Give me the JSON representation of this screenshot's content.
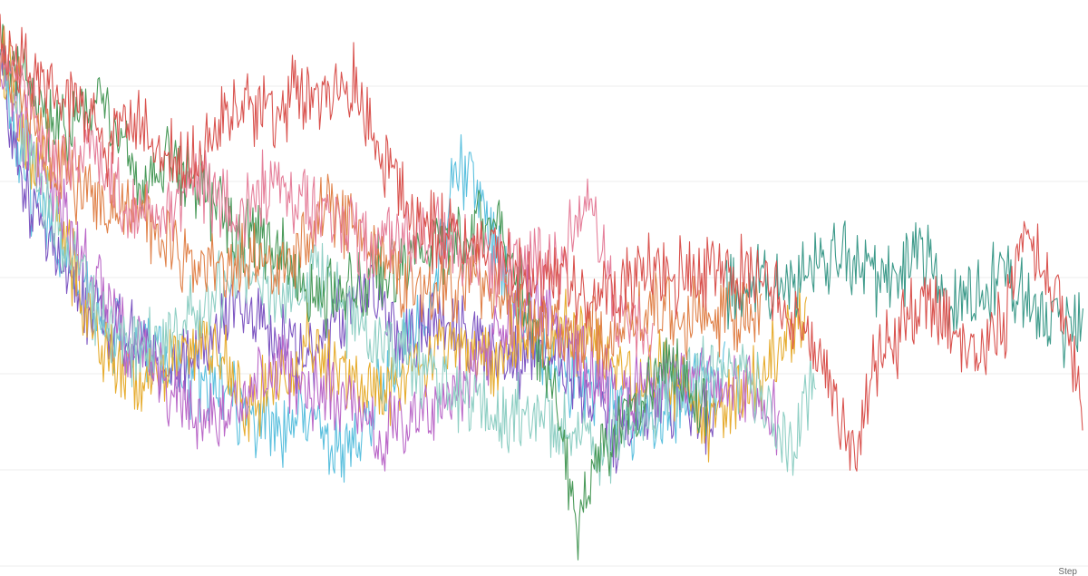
{
  "chart_data": {
    "type": "line",
    "xlabel": "Step",
    "ylabel": "",
    "title": "",
    "grid": true,
    "ylim": [
      0,
      6
    ],
    "x_range": [
      0,
      1200
    ],
    "series": [
      {
        "color": "#5bc0de",
        "points": [
          [
            0,
            48
          ],
          [
            15,
            148
          ],
          [
            40,
            230
          ],
          [
            80,
            300
          ],
          [
            120,
            360
          ],
          [
            170,
            390
          ],
          [
            220,
            420
          ],
          [
            280,
            460
          ],
          [
            340,
            470
          ],
          [
            380,
            500
          ],
          [
            420,
            430
          ],
          [
            480,
            330
          ],
          [
            500,
            170
          ],
          [
            520,
            200
          ],
          [
            560,
            310
          ],
          [
            600,
            400
          ],
          [
            640,
            420
          ],
          [
            680,
            450
          ],
          [
            720,
            470
          ],
          [
            760,
            430
          ],
          [
            800,
            420
          ]
        ]
      },
      {
        "color": "#7e57c2",
        "points": [
          [
            0,
            58
          ],
          [
            20,
            180
          ],
          [
            40,
            240
          ],
          [
            70,
            290
          ],
          [
            100,
            340
          ],
          [
            140,
            370
          ],
          [
            180,
            400
          ],
          [
            220,
            390
          ],
          [
            260,
            330
          ],
          [
            300,
            360
          ],
          [
            340,
            400
          ],
          [
            380,
            340
          ],
          [
            410,
            320
          ],
          [
            440,
            370
          ],
          [
            480,
            360
          ],
          [
            520,
            380
          ],
          [
            560,
            400
          ],
          [
            600,
            380
          ],
          [
            640,
            420
          ],
          [
            680,
            480
          ],
          [
            720,
            440
          ],
          [
            760,
            450
          ],
          [
            790,
            460
          ]
        ]
      },
      {
        "color": "#e6ac2f",
        "points": [
          [
            0,
            55
          ],
          [
            30,
            150
          ],
          [
            60,
            220
          ],
          [
            90,
            330
          ],
          [
            120,
            400
          ],
          [
            160,
            420
          ],
          [
            200,
            390
          ],
          [
            240,
            380
          ],
          [
            270,
            450
          ],
          [
            300,
            430
          ],
          [
            340,
            380
          ],
          [
            380,
            420
          ],
          [
            420,
            440
          ],
          [
            460,
            400
          ],
          [
            500,
            380
          ],
          [
            540,
            400
          ],
          [
            580,
            360
          ],
          [
            620,
            360
          ],
          [
            660,
            390
          ],
          [
            700,
            420
          ],
          [
            740,
            410
          ],
          [
            780,
            470
          ],
          [
            820,
            430
          ],
          [
            860,
            380
          ],
          [
            890,
            340
          ]
        ]
      },
      {
        "color": "#ba68c8",
        "points": [
          [
            0,
            60
          ],
          [
            25,
            140
          ],
          [
            60,
            210
          ],
          [
            100,
            300
          ],
          [
            140,
            370
          ],
          [
            180,
            420
          ],
          [
            220,
            460
          ],
          [
            260,
            450
          ],
          [
            300,
            400
          ],
          [
            340,
            430
          ],
          [
            380,
            440
          ],
          [
            420,
            480
          ],
          [
            460,
            460
          ],
          [
            500,
            430
          ],
          [
            540,
            380
          ],
          [
            580,
            330
          ],
          [
            620,
            360
          ],
          [
            660,
            420
          ],
          [
            700,
            430
          ],
          [
            740,
            410
          ],
          [
            780,
            420
          ],
          [
            820,
            430
          ],
          [
            860,
            460
          ]
        ]
      },
      {
        "color": "#8fcfc4",
        "points": [
          [
            0,
            56
          ],
          [
            30,
            160
          ],
          [
            70,
            260
          ],
          [
            110,
            350
          ],
          [
            150,
            390
          ],
          [
            190,
            370
          ],
          [
            230,
            330
          ],
          [
            270,
            300
          ],
          [
            310,
            340
          ],
          [
            350,
            300
          ],
          [
            390,
            360
          ],
          [
            430,
            380
          ],
          [
            470,
            420
          ],
          [
            510,
            440
          ],
          [
            550,
            460
          ],
          [
            590,
            450
          ],
          [
            630,
            480
          ],
          [
            670,
            490
          ],
          [
            710,
            460
          ],
          [
            750,
            420
          ],
          [
            790,
            400
          ],
          [
            830,
            420
          ],
          [
            870,
            500
          ],
          [
            900,
            420
          ]
        ]
      },
      {
        "color": "#4a9a5a",
        "points": [
          [
            0,
            40
          ],
          [
            30,
            100
          ],
          [
            70,
            150
          ],
          [
            110,
            110
          ],
          [
            150,
            200
          ],
          [
            190,
            180
          ],
          [
            230,
            220
          ],
          [
            270,
            260
          ],
          [
            310,
            280
          ],
          [
            350,
            330
          ],
          [
            390,
            320
          ],
          [
            430,
            300
          ],
          [
            470,
            280
          ],
          [
            510,
            260
          ],
          [
            550,
            240
          ],
          [
            590,
            370
          ],
          [
            620,
            460
          ],
          [
            635,
            590
          ],
          [
            660,
            500
          ],
          [
            700,
            440
          ],
          [
            740,
            400
          ],
          [
            780,
            440
          ]
        ]
      },
      {
        "color": "#e0824a",
        "points": [
          [
            0,
            50
          ],
          [
            40,
            140
          ],
          [
            80,
            200
          ],
          [
            120,
            220
          ],
          [
            160,
            240
          ],
          [
            200,
            280
          ],
          [
            240,
            300
          ],
          [
            280,
            280
          ],
          [
            320,
            300
          ],
          [
            360,
            220
          ],
          [
            400,
            260
          ],
          [
            440,
            300
          ],
          [
            480,
            330
          ],
          [
            520,
            310
          ],
          [
            560,
            330
          ],
          [
            600,
            360
          ],
          [
            640,
            380
          ],
          [
            680,
            360
          ],
          [
            720,
            340
          ],
          [
            760,
            350
          ],
          [
            800,
            350
          ],
          [
            840,
            330
          ]
        ]
      },
      {
        "color": "#e57f9a",
        "points": [
          [
            0,
            45
          ],
          [
            30,
            110
          ],
          [
            60,
            180
          ],
          [
            100,
            160
          ],
          [
            140,
            230
          ],
          [
            180,
            240
          ],
          [
            220,
            200
          ],
          [
            260,
            240
          ],
          [
            300,
            200
          ],
          [
            340,
            230
          ],
          [
            380,
            250
          ],
          [
            420,
            280
          ],
          [
            460,
            250
          ],
          [
            500,
            270
          ],
          [
            540,
            300
          ],
          [
            580,
            280
          ],
          [
            620,
            290
          ],
          [
            650,
            200
          ],
          [
            680,
            350
          ],
          [
            720,
            380
          ]
        ]
      },
      {
        "color": "#3d9a8a",
        "points": [
          [
            800,
            330
          ],
          [
            840,
            310
          ],
          [
            870,
            320
          ],
          [
            900,
            300
          ],
          [
            930,
            280
          ],
          [
            960,
            310
          ],
          [
            990,
            300
          ],
          [
            1020,
            280
          ],
          [
            1050,
            340
          ],
          [
            1080,
            330
          ],
          [
            1110,
            300
          ],
          [
            1140,
            340
          ],
          [
            1170,
            360
          ],
          [
            1195,
            350
          ]
        ]
      },
      {
        "color": "#d9534f",
        "points": [
          [
            0,
            50
          ],
          [
            30,
            80
          ],
          [
            60,
            100
          ],
          [
            90,
            130
          ],
          [
            120,
            160
          ],
          [
            150,
            140
          ],
          [
            180,
            170
          ],
          [
            210,
            190
          ],
          [
            240,
            150
          ],
          [
            270,
            110
          ],
          [
            300,
            130
          ],
          [
            330,
            100
          ],
          [
            360,
            110
          ],
          [
            390,
            90
          ],
          [
            410,
            140
          ],
          [
            430,
            200
          ],
          [
            450,
            230
          ],
          [
            470,
            260
          ],
          [
            500,
            250
          ],
          [
            530,
            270
          ],
          [
            560,
            290
          ],
          [
            590,
            300
          ],
          [
            620,
            310
          ],
          [
            650,
            330
          ],
          [
            680,
            320
          ],
          [
            710,
            300
          ],
          [
            740,
            310
          ],
          [
            770,
            300
          ],
          [
            800,
            310
          ],
          [
            830,
            300
          ],
          [
            860,
            330
          ],
          [
            890,
            370
          ],
          [
            920,
            440
          ],
          [
            945,
            520
          ],
          [
            960,
            400
          ],
          [
            990,
            370
          ],
          [
            1020,
            330
          ],
          [
            1050,
            360
          ],
          [
            1080,
            390
          ],
          [
            1110,
            350
          ],
          [
            1130,
            240
          ],
          [
            1150,
            300
          ],
          [
            1170,
            330
          ],
          [
            1185,
            400
          ],
          [
            1195,
            450
          ]
        ]
      }
    ]
  }
}
